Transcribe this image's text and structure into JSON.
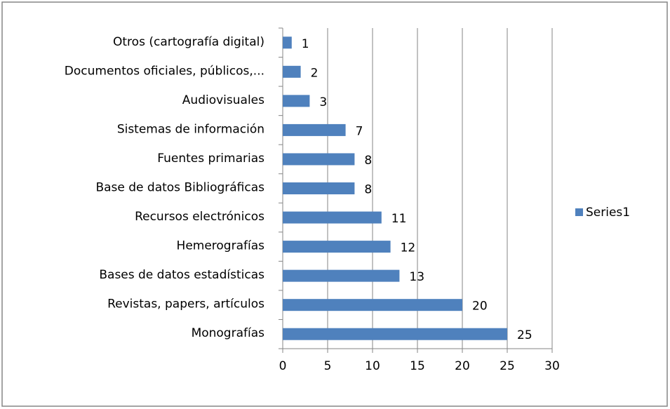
{
  "chart_data": {
    "type": "bar",
    "orientation": "horizontal",
    "categories": [
      "Otros (cartografía digital)",
      "Documentos oficiales, públicos,...",
      "Audiovisuales",
      "Sistemas de información",
      "Fuentes primarias",
      "Base de datos Bibliográficas",
      "Recursos electrónicos",
      "Hemerografías",
      "Bases de datos estadísticas",
      "Revistas, papers, artículos",
      "Monografías"
    ],
    "series": [
      {
        "name": "Series1",
        "color": "#4f81bd",
        "values": [
          1,
          2,
          3,
          7,
          8,
          8,
          11,
          12,
          13,
          20,
          25
        ]
      }
    ],
    "xlim": [
      0,
      30
    ],
    "xticks": [
      0,
      5,
      10,
      15,
      20,
      25,
      30
    ],
    "grid": true,
    "legend": "right"
  }
}
